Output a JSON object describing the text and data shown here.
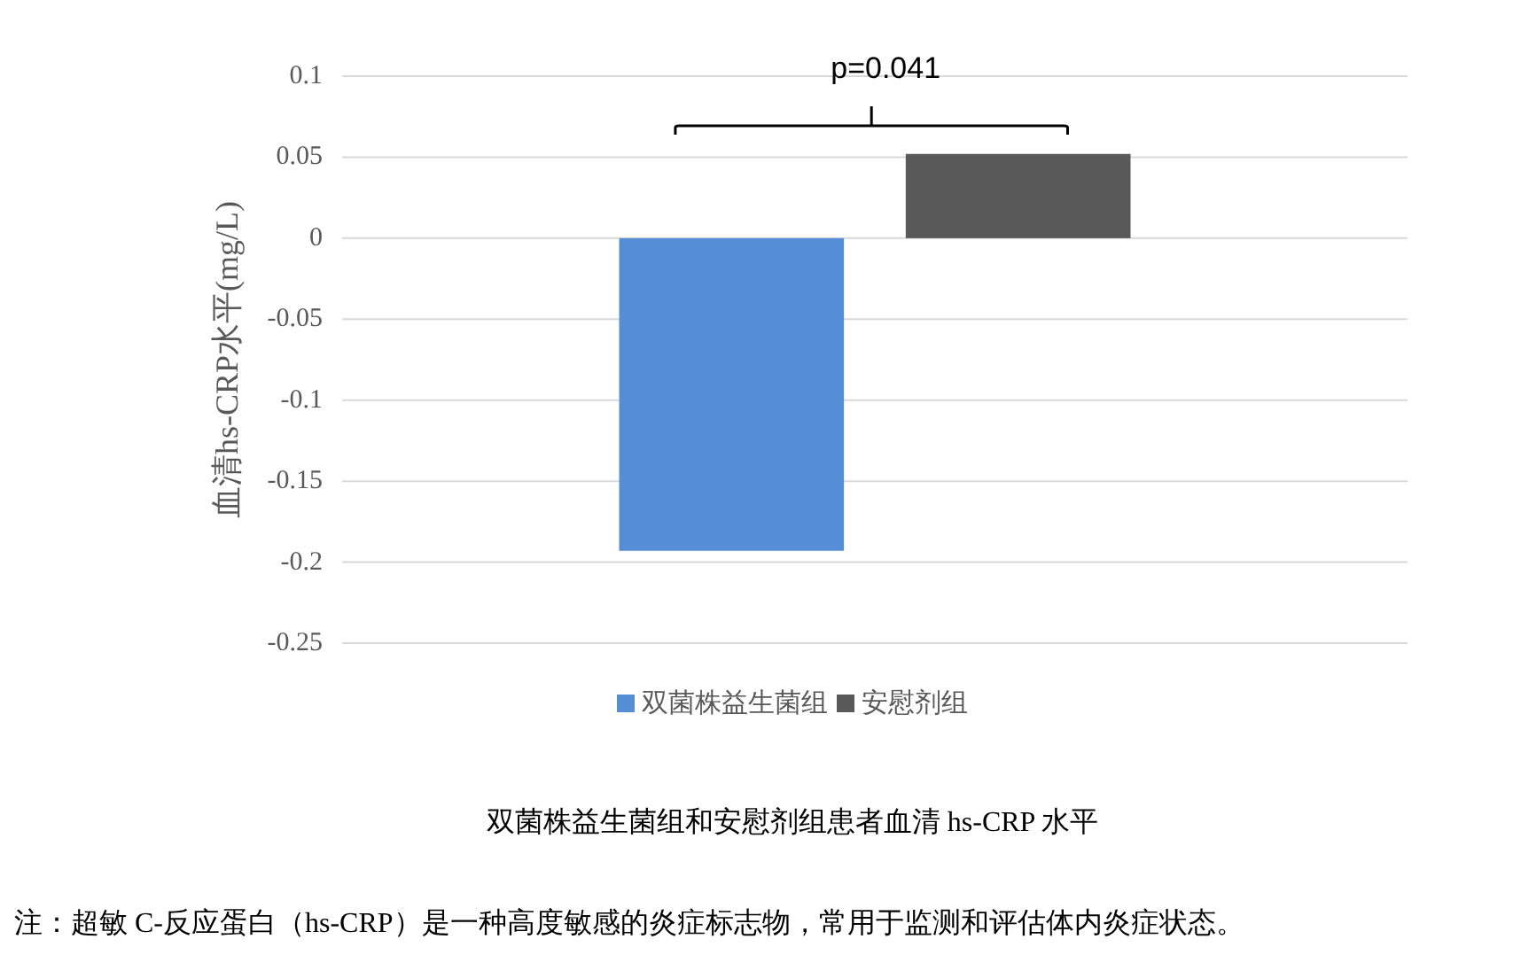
{
  "chart_data": {
    "type": "bar",
    "title": "双菌株益生菌组和安慰剂组患者血清 hs-CRP 水平",
    "ylabel": "血清hs-CRP水平(mg/L)",
    "annotations": [
      "p=0.041",
      "注：超敏 C-反应蛋白（hs-CRP）是一种高度敏感的炎症标志物，常用于监测和评估体内炎症状态。"
    ],
    "categories": [
      null
    ],
    "series": [
      {
        "name": "双菌株益生菌组",
        "color": "#558ed5",
        "values": [
          -0.193
        ]
      },
      {
        "name": "安慰剂组",
        "color": "#595959",
        "values": [
          0.052
        ]
      }
    ],
    "ylim": [
      -0.25,
      0.1
    ],
    "yticks": [
      -0.25,
      -0.2,
      -0.15,
      -0.1,
      -0.05,
      0,
      0.05,
      0.1
    ],
    "grid": "y",
    "legend": "bottom"
  }
}
